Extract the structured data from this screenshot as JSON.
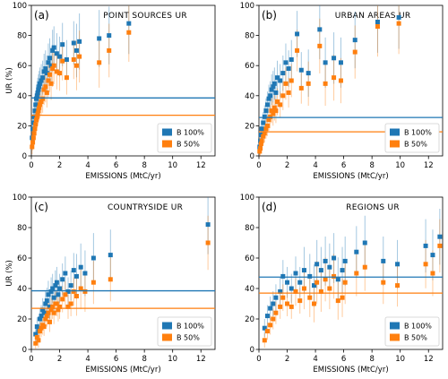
{
  "colors": {
    "b100": "#1f77b4",
    "b50": "#ff7f0e"
  },
  "chart_data": [
    {
      "type": "scatter",
      "panel_label": "(a)",
      "title": "POINT SOURCES UR",
      "xlabel": "EMISSIONS (MtC/yr)",
      "ylabel": "UR (%)",
      "xlim": [
        0,
        13
      ],
      "ylim": [
        0,
        100
      ],
      "xticks": [
        0,
        2,
        4,
        6,
        8,
        10,
        12
      ],
      "yticks": [
        0,
        20,
        40,
        60,
        80,
        100
      ],
      "legend_position": "bottom-right",
      "hlines": [
        {
          "series": "B 100%",
          "y": 38.5
        },
        {
          "series": "B 50%",
          "y": 27
        }
      ],
      "series": [
        {
          "name": "B 100%",
          "x": [
            0.05,
            0.1,
            0.15,
            0.2,
            0.25,
            0.3,
            0.35,
            0.4,
            0.45,
            0.5,
            0.55,
            0.6,
            0.7,
            0.8,
            0.9,
            1.0,
            1.1,
            1.2,
            1.3,
            1.4,
            1.5,
            1.6,
            1.8,
            2.0,
            2.2,
            2.5,
            3.0,
            3.2,
            3.4,
            4.8,
            5.5,
            6.9
          ],
          "y": [
            12,
            18,
            22,
            26,
            30,
            34,
            38,
            40,
            42,
            44,
            46,
            48,
            50,
            52,
            56,
            58,
            55,
            62,
            65,
            60,
            70,
            72,
            68,
            66,
            74,
            64,
            75,
            70,
            76,
            78,
            80,
            88
          ]
        },
        {
          "name": "B 50%",
          "x": [
            0.05,
            0.1,
            0.15,
            0.2,
            0.25,
            0.3,
            0.35,
            0.4,
            0.45,
            0.5,
            0.55,
            0.6,
            0.7,
            0.8,
            0.9,
            1.0,
            1.1,
            1.2,
            1.3,
            1.4,
            1.5,
            1.6,
            1.8,
            2.0,
            2.2,
            2.5,
            3.0,
            3.2,
            3.4,
            4.8,
            5.5,
            6.9
          ],
          "y": [
            6,
            9,
            12,
            15,
            18,
            21,
            24,
            26,
            28,
            30,
            32,
            34,
            36,
            38,
            44,
            46,
            42,
            50,
            54,
            48,
            58,
            60,
            56,
            55,
            63,
            52,
            64,
            60,
            66,
            62,
            70,
            82
          ]
        }
      ]
    },
    {
      "type": "scatter",
      "panel_label": "(b)",
      "title": "URBAN AREAS UR",
      "xlabel": "EMISSIONS (MtC/yr)",
      "ylabel": "",
      "xlim": [
        0,
        13
      ],
      "ylim": [
        0,
        100
      ],
      "xticks": [
        0,
        2,
        4,
        6,
        8,
        10,
        12
      ],
      "yticks": [
        0,
        20,
        40,
        60,
        80,
        100
      ],
      "legend_position": "bottom-right",
      "hlines": [
        {
          "series": "B 100%",
          "y": 25.5
        },
        {
          "series": "B 50%",
          "y": 16
        }
      ],
      "series": [
        {
          "name": "B 100%",
          "x": [
            0.05,
            0.1,
            0.15,
            0.2,
            0.3,
            0.4,
            0.5,
            0.6,
            0.7,
            0.8,
            0.9,
            1.0,
            1.1,
            1.2,
            1.3,
            1.5,
            1.7,
            1.9,
            2.1,
            2.3,
            2.7,
            3.0,
            3.5,
            4.3,
            4.7,
            5.3,
            5.8,
            6.8,
            8.4,
            9.9
          ],
          "y": [
            6,
            10,
            14,
            18,
            22,
            26,
            30,
            34,
            38,
            40,
            44,
            46,
            48,
            42,
            52,
            50,
            55,
            62,
            58,
            64,
            81,
            57,
            55,
            84,
            62,
            65,
            62,
            77,
            89,
            92
          ]
        },
        {
          "name": "B 50%",
          "x": [
            0.05,
            0.1,
            0.15,
            0.2,
            0.3,
            0.4,
            0.5,
            0.6,
            0.7,
            0.8,
            0.9,
            1.0,
            1.1,
            1.2,
            1.3,
            1.5,
            1.7,
            1.9,
            2.1,
            2.3,
            2.7,
            3.0,
            3.5,
            4.3,
            4.7,
            5.3,
            5.8,
            6.8,
            8.4,
            9.9
          ],
          "y": [
            3,
            5,
            8,
            10,
            13,
            15,
            18,
            20,
            24,
            26,
            30,
            28,
            32,
            30,
            36,
            34,
            40,
            48,
            42,
            50,
            70,
            45,
            48,
            73,
            48,
            52,
            50,
            69,
            86,
            88
          ]
        }
      ]
    },
    {
      "type": "scatter",
      "panel_label": "(c)",
      "title": "COUNTRYSIDE UR",
      "xlabel": "EMISSIONS (MtC/yr)",
      "ylabel": "UR (%)",
      "xlim": [
        0,
        13
      ],
      "ylim": [
        0,
        100
      ],
      "xticks": [
        0,
        2,
        4,
        6,
        8,
        10,
        12
      ],
      "yticks": [
        0,
        20,
        40,
        60,
        80,
        100
      ],
      "legend_position": "bottom-right",
      "hlines": [
        {
          "series": "B 100%",
          "y": 38.5
        },
        {
          "series": "B 50%",
          "y": 27
        }
      ],
      "series": [
        {
          "name": "B 100%",
          "x": [
            0.3,
            0.4,
            0.5,
            0.6,
            0.7,
            0.8,
            0.9,
            1.0,
            1.1,
            1.2,
            1.3,
            1.4,
            1.5,
            1.6,
            1.7,
            1.8,
            1.9,
            2.0,
            2.2,
            2.4,
            2.6,
            2.8,
            3.0,
            3.2,
            3.5,
            3.8,
            4.4,
            5.6,
            12.5
          ],
          "y": [
            10,
            15,
            12,
            20,
            22,
            26,
            24,
            30,
            32,
            36,
            28,
            38,
            40,
            34,
            42,
            44,
            36,
            40,
            46,
            50,
            38,
            42,
            52,
            48,
            54,
            50,
            60,
            62,
            82
          ]
        },
        {
          "name": "B 50%",
          "x": [
            0.3,
            0.4,
            0.5,
            0.6,
            0.7,
            0.8,
            0.9,
            1.0,
            1.1,
            1.2,
            1.3,
            1.4,
            1.5,
            1.6,
            1.7,
            1.8,
            1.9,
            2.0,
            2.2,
            2.4,
            2.6,
            2.8,
            3.0,
            3.2,
            3.5,
            3.8,
            4.4,
            5.6,
            12.5
          ],
          "y": [
            4,
            8,
            6,
            12,
            14,
            16,
            15,
            20,
            22,
            24,
            18,
            26,
            28,
            24,
            30,
            30,
            26,
            28,
            33,
            36,
            28,
            30,
            38,
            35,
            40,
            38,
            44,
            46,
            70
          ]
        }
      ]
    },
    {
      "type": "scatter",
      "panel_label": "(d)",
      "title": "REGIONS UR",
      "xlabel": "EMISSIONS (MtC/yr)",
      "ylabel": "",
      "xlim": [
        0,
        13
      ],
      "ylim": [
        0,
        100
      ],
      "xticks": [
        0,
        2,
        4,
        6,
        8,
        10,
        12
      ],
      "yticks": [
        0,
        20,
        40,
        60,
        80,
        100
      ],
      "legend_position": "bottom-right",
      "hlines": [
        {
          "series": "B 100%",
          "y": 47.5
        },
        {
          "series": "B 50%",
          "y": 37
        }
      ],
      "series": [
        {
          "name": "B 100%",
          "x": [
            0.4,
            0.6,
            0.8,
            1.0,
            1.2,
            1.5,
            1.7,
            2.0,
            2.3,
            2.6,
            2.9,
            3.2,
            3.6,
            3.9,
            4.1,
            4.4,
            4.7,
            5.0,
            5.3,
            5.6,
            5.9,
            6.1,
            6.9,
            7.5,
            8.8,
            9.8,
            11.8,
            12.3,
            12.8
          ],
          "y": [
            14,
            22,
            27,
            30,
            34,
            38,
            48,
            44,
            40,
            50,
            44,
            52,
            48,
            42,
            56,
            52,
            58,
            54,
            60,
            46,
            52,
            58,
            64,
            70,
            58,
            56,
            68,
            62,
            74
          ]
        },
        {
          "name": "B 50%",
          "x": [
            0.4,
            0.6,
            0.8,
            1.0,
            1.2,
            1.5,
            1.7,
            2.0,
            2.3,
            2.6,
            2.9,
            3.2,
            3.6,
            3.9,
            4.1,
            4.4,
            4.7,
            5.0,
            5.3,
            5.6,
            5.9,
            6.1,
            6.9,
            7.5,
            8.8,
            9.8,
            11.8,
            12.3,
            12.8
          ],
          "y": [
            6,
            12,
            16,
            20,
            24,
            28,
            34,
            30,
            28,
            38,
            32,
            40,
            34,
            30,
            44,
            38,
            46,
            40,
            48,
            32,
            34,
            44,
            50,
            54,
            44,
            42,
            56,
            50,
            68
          ]
        }
      ]
    }
  ]
}
